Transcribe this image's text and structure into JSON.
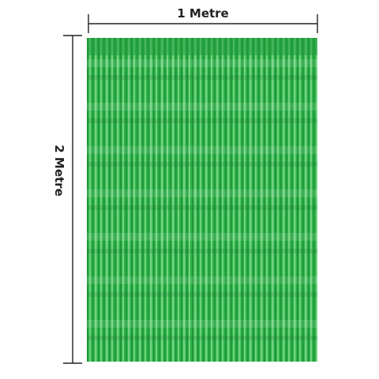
{
  "labels": {
    "width": "1 Metre",
    "height": "2 Metre"
  }
}
